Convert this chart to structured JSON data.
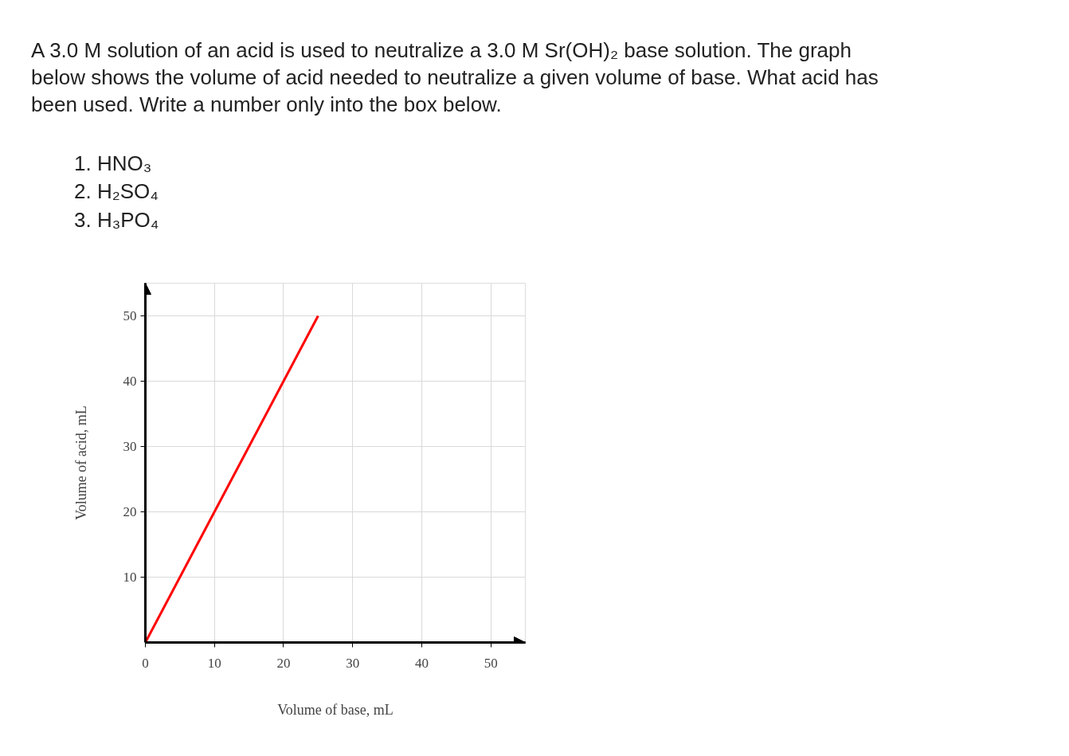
{
  "chart_data": {
    "type": "line",
    "title": "A 3.0 M solution of an acid is used to neutralize a 3.0 M  Sr(OH)₂  base solution. The graph below shows the volume of acid needed to neutralize a given volume of base. What acid has been used. Write a number only into the box below.",
    "annotations": [
      "1. HNO₃",
      "2. H₂SO₄",
      "3. H₃PO₄"
    ],
    "xlabel": "Volume of base, mL",
    "ylabel": "Volume of acid, mL",
    "x": [
      0,
      25
    ],
    "series": [
      {
        "color": "#ff0000",
        "values": [
          0,
          50
        ]
      }
    ],
    "xlim": [
      0,
      55
    ],
    "ylim": [
      0,
      55
    ],
    "xticks": [
      0,
      10,
      20,
      30,
      40,
      50
    ],
    "yticks": [
      10,
      20,
      30,
      40,
      50
    ],
    "grid": true
  }
}
